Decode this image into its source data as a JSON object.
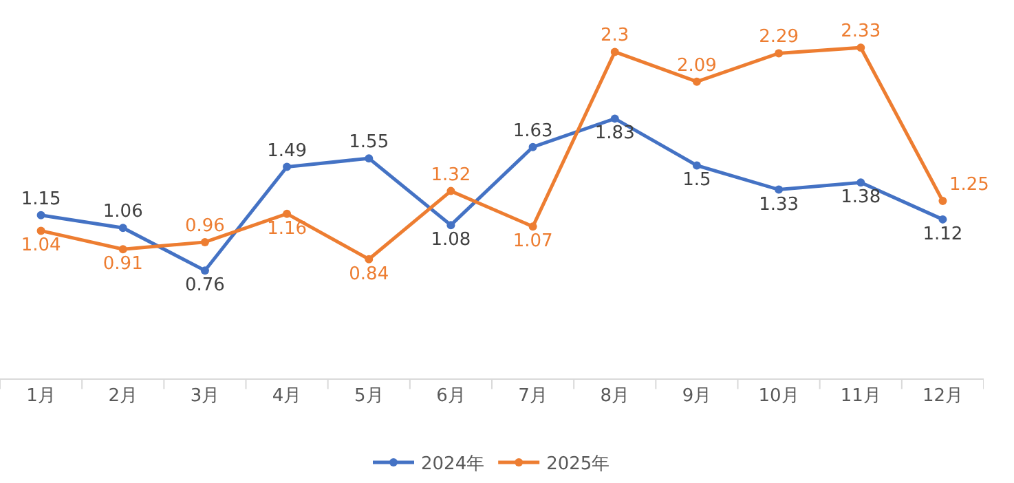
{
  "chart_data": {
    "type": "line",
    "categories": [
      "1月",
      "2月",
      "3月",
      "4月",
      "5月",
      "6月",
      "7月",
      "8月",
      "9月",
      "10月",
      "11月",
      "12月"
    ],
    "series": [
      {
        "name": "2024年",
        "color": "#4472c4",
        "values": [
          1.15,
          1.06,
          0.76,
          1.49,
          1.55,
          1.08,
          1.63,
          1.83,
          1.5,
          1.33,
          1.38,
          1.12
        ]
      },
      {
        "name": "2025年",
        "color": "#ed7d31",
        "values": [
          1.04,
          0.91,
          0.96,
          1.16,
          0.84,
          1.32,
          1.07,
          2.3,
          2.09,
          2.29,
          2.33,
          1.25
        ]
      }
    ],
    "tick_labels": "x",
    "data_labels": true,
    "grid": false,
    "legend": "bottom",
    "marker": "circle",
    "line_style": "solid"
  }
}
